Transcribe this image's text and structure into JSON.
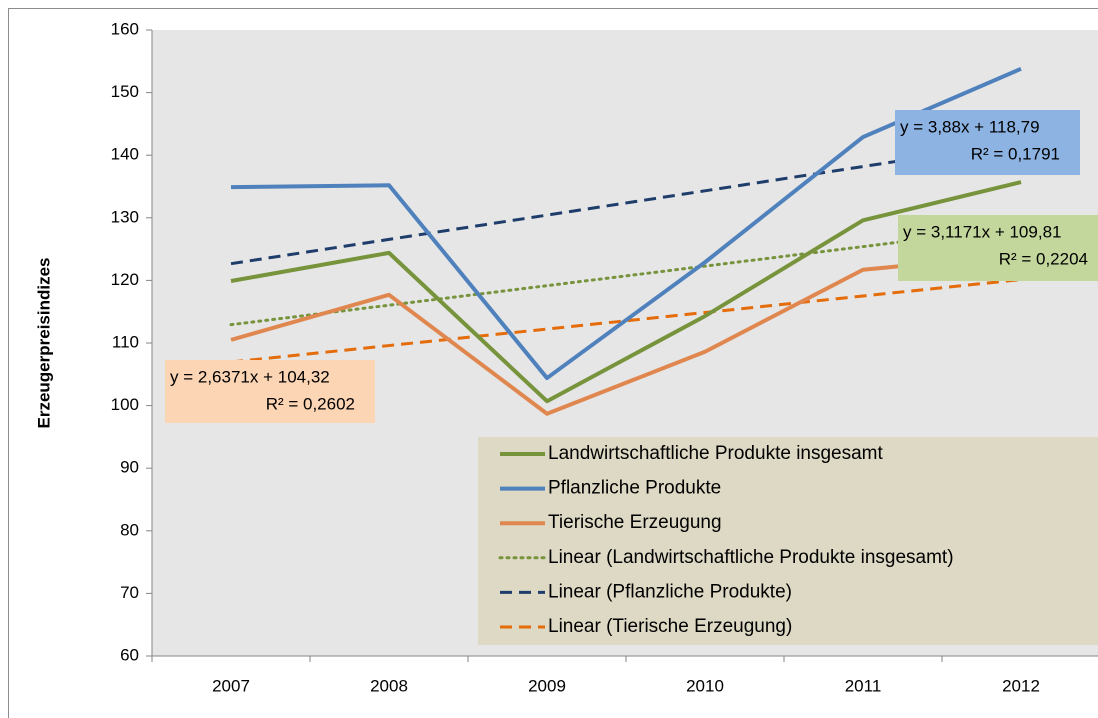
{
  "chart_data": {
    "type": "line",
    "y_label": "Erzeugerpreisindizes",
    "categories": [
      "2007",
      "2008",
      "2009",
      "2010",
      "2011",
      "2012"
    ],
    "ylim": [
      60,
      160
    ],
    "yticks": [
      60,
      70,
      80,
      90,
      100,
      110,
      120,
      130,
      140,
      150,
      160
    ],
    "legend": "bottom-right",
    "series": [
      {
        "name": "Landwirtschaftliche Produkte insgesamt",
        "color": "#77933c",
        "dash": "solid",
        "values": [
          119.9,
          124.4,
          100.7,
          114.3,
          129.6,
          135.7
        ]
      },
      {
        "name": "Pflanzliche Produkte",
        "color": "#4f81bd",
        "dash": "solid",
        "values": [
          134.9,
          135.2,
          104.4,
          122.9,
          142.9,
          153.8
        ]
      },
      {
        "name": "Tierische Erzeugung",
        "color": "#e0874f",
        "dash": "solid",
        "values": [
          110.5,
          117.7,
          98.7,
          108.6,
          121.7,
          124.1
        ]
      },
      {
        "name": "Linear (Landwirtschaftliche Produkte insgesamt)",
        "color": "#77933c",
        "dash": "dotted",
        "values": [
          112.93,
          116.04,
          119.16,
          122.28,
          125.4,
          128.51
        ]
      },
      {
        "name": "Linear (Pflanzliche Produkte)",
        "color": "#1f3d6b",
        "dash": "dashed",
        "values": [
          122.67,
          126.55,
          130.43,
          134.31,
          138.19,
          142.07
        ]
      },
      {
        "name": "Linear (Tierische Erzeugung)",
        "color": "#e46c0a",
        "dash": "dashed",
        "values": [
          106.96,
          109.59,
          112.23,
          114.87,
          117.51,
          120.14
        ]
      }
    ],
    "annotations": [
      {
        "lines": [
          "y = 3,88x + 118,79",
          "R² = 0,1791"
        ],
        "color": "#8db3e2"
      },
      {
        "lines": [
          "y = 3,1171x + 109,81",
          "R² = 0,2204"
        ],
        "color": "#c3d69b"
      },
      {
        "lines": [
          "y = 2,6371x + 104,32",
          "R² = 0,2602"
        ],
        "color": "#fcd5b5"
      }
    ]
  }
}
